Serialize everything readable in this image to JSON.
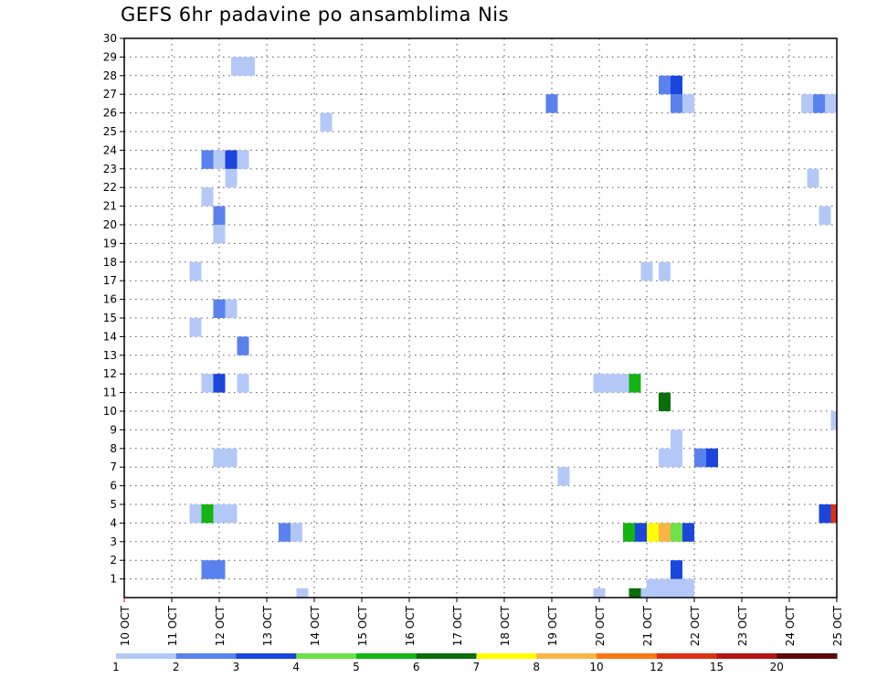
{
  "chart_data": {
    "type": "heatmap",
    "title": "GEFS 6hr padavine po ansamblima Nis",
    "x_tick_labels": [
      "10 OCT",
      "11 OCT",
      "12 OCT",
      "13 OCT",
      "14 OCT",
      "15 OCT",
      "16 OCT",
      "17 OCT",
      "18 OCT",
      "19 OCT",
      "20 OCT",
      "21 OCT",
      "22 OCT",
      "23 OCT",
      "24 OCT",
      "25 OCT"
    ],
    "y_tick_labels": [
      "1",
      "2",
      "3",
      "4",
      "5",
      "6",
      "7",
      "8",
      "9",
      "10",
      "11",
      "12",
      "13",
      "14",
      "15",
      "16",
      "17",
      "18",
      "19",
      "20",
      "21",
      "22",
      "23",
      "24",
      "25",
      "26",
      "27",
      "28",
      "29",
      "30"
    ],
    "xlim": [
      0,
      60
    ],
    "ylim": [
      0,
      30
    ],
    "grid": true,
    "colorbar": {
      "labels": [
        "1",
        "2",
        "3",
        "4",
        "5",
        "6",
        "7",
        "8",
        "10",
        "12",
        "15",
        "20"
      ],
      "colors": [
        "#b4c8f8",
        "#5a82ee",
        "#1a46dc",
        "#6ee04a",
        "#14b414",
        "#0a6e0a",
        "#ffff00",
        "#f8b446",
        "#f87814",
        "#dc3214",
        "#b41414",
        "#5a0a0a"
      ]
    },
    "units": "6-hourly step (x), ensemble member (y), precipitation class (c)",
    "cells": [
      {
        "x": 44.5,
        "y": 0.5,
        "c": 1
      },
      {
        "x": 45.5,
        "y": 0.5,
        "c": 1
      },
      {
        "x": 46.5,
        "y": 0.5,
        "c": 1
      },
      {
        "x": 47.5,
        "y": 0.5,
        "c": 1
      },
      {
        "x": 7,
        "y": 1.5,
        "c": 2
      },
      {
        "x": 8,
        "y": 1.5,
        "c": 2
      },
      {
        "x": 46.5,
        "y": 1.5,
        "c": 3
      },
      {
        "x": 13.5,
        "y": 3.5,
        "c": 2
      },
      {
        "x": 14.5,
        "y": 3.5,
        "c": 1
      },
      {
        "x": 42.5,
        "y": 3.5,
        "c": 5
      },
      {
        "x": 43.5,
        "y": 3.5,
        "c": 3
      },
      {
        "x": 44.5,
        "y": 3.5,
        "c": 7
      },
      {
        "x": 45.5,
        "y": 3.5,
        "c": 8
      },
      {
        "x": 46.5,
        "y": 3.5,
        "c": 4
      },
      {
        "x": 47.5,
        "y": 3.5,
        "c": 3
      },
      {
        "x": 6,
        "y": 4.5,
        "c": 1
      },
      {
        "x": 7,
        "y": 4.5,
        "c": 5
      },
      {
        "x": 8,
        "y": 4.5,
        "c": 1
      },
      {
        "x": 9,
        "y": 4.5,
        "c": 1
      },
      {
        "x": 59,
        "y": 4.5,
        "c": 3
      },
      {
        "x": 60,
        "y": 4.5,
        "c": 10
      },
      {
        "x": 37,
        "y": 6.5,
        "c": 1
      },
      {
        "x": 8,
        "y": 7.5,
        "c": 1
      },
      {
        "x": 9,
        "y": 7.5,
        "c": 1
      },
      {
        "x": 45.5,
        "y": 7.5,
        "c": 1
      },
      {
        "x": 46.5,
        "y": 7.5,
        "c": 1
      },
      {
        "x": 48.5,
        "y": 7.5,
        "c": 2
      },
      {
        "x": 49.5,
        "y": 7.5,
        "c": 3
      },
      {
        "x": 46.5,
        "y": 8.5,
        "c": 1
      },
      {
        "x": 60,
        "y": 9.5,
        "c": 1
      },
      {
        "x": 45.5,
        "y": 10.5,
        "c": 6
      },
      {
        "x": 7,
        "y": 11.5,
        "c": 1
      },
      {
        "x": 8,
        "y": 11.5,
        "c": 3
      },
      {
        "x": 10,
        "y": 11.5,
        "c": 1
      },
      {
        "x": 40,
        "y": 11.5,
        "c": 1
      },
      {
        "x": 41,
        "y": 11.5,
        "c": 1
      },
      {
        "x": 42,
        "y": 11.5,
        "c": 1
      },
      {
        "x": 43,
        "y": 11.5,
        "c": 5
      },
      {
        "x": 10,
        "y": 13.5,
        "c": 2
      },
      {
        "x": 6,
        "y": 14.5,
        "c": 1
      },
      {
        "x": 8,
        "y": 15.5,
        "c": 2
      },
      {
        "x": 9,
        "y": 15.5,
        "c": 1
      },
      {
        "x": 6,
        "y": 17.5,
        "c": 1
      },
      {
        "x": 44,
        "y": 17.5,
        "c": 1
      },
      {
        "x": 45.5,
        "y": 17.5,
        "c": 1
      },
      {
        "x": 8,
        "y": 19.5,
        "c": 1
      },
      {
        "x": 8,
        "y": 20.5,
        "c": 2
      },
      {
        "x": 59,
        "y": 20.5,
        "c": 1
      },
      {
        "x": 7,
        "y": 21.5,
        "c": 1
      },
      {
        "x": 9,
        "y": 22.5,
        "c": 1
      },
      {
        "x": 58,
        "y": 22.5,
        "c": 1
      },
      {
        "x": 7,
        "y": 23.5,
        "c": 2
      },
      {
        "x": 8,
        "y": 23.5,
        "c": 1
      },
      {
        "x": 9,
        "y": 23.5,
        "c": 3
      },
      {
        "x": 10,
        "y": 23.5,
        "c": 1
      },
      {
        "x": 17,
        "y": 25.5,
        "c": 1
      },
      {
        "x": 36,
        "y": 26.5,
        "c": 2
      },
      {
        "x": 46.5,
        "y": 26.5,
        "c": 2
      },
      {
        "x": 47.5,
        "y": 26.5,
        "c": 1
      },
      {
        "x": 57.5,
        "y": 26.5,
        "c": 1
      },
      {
        "x": 58.5,
        "y": 26.5,
        "c": 2
      },
      {
        "x": 59.5,
        "y": 26.5,
        "c": 1
      },
      {
        "x": 45.5,
        "y": 27.5,
        "c": 2
      },
      {
        "x": 46.5,
        "y": 27.5,
        "c": 3
      },
      {
        "x": 9.5,
        "y": 28.5,
        "c": 1
      },
      {
        "x": 10.5,
        "y": 28.5,
        "c": 1
      },
      {
        "x": 15,
        "y": 0,
        "c": 1
      },
      {
        "x": 40,
        "y": 0,
        "c": 1
      },
      {
        "x": 44,
        "y": 0,
        "c": 1
      },
      {
        "x": 43,
        "y": 0,
        "c": 6
      }
    ]
  }
}
